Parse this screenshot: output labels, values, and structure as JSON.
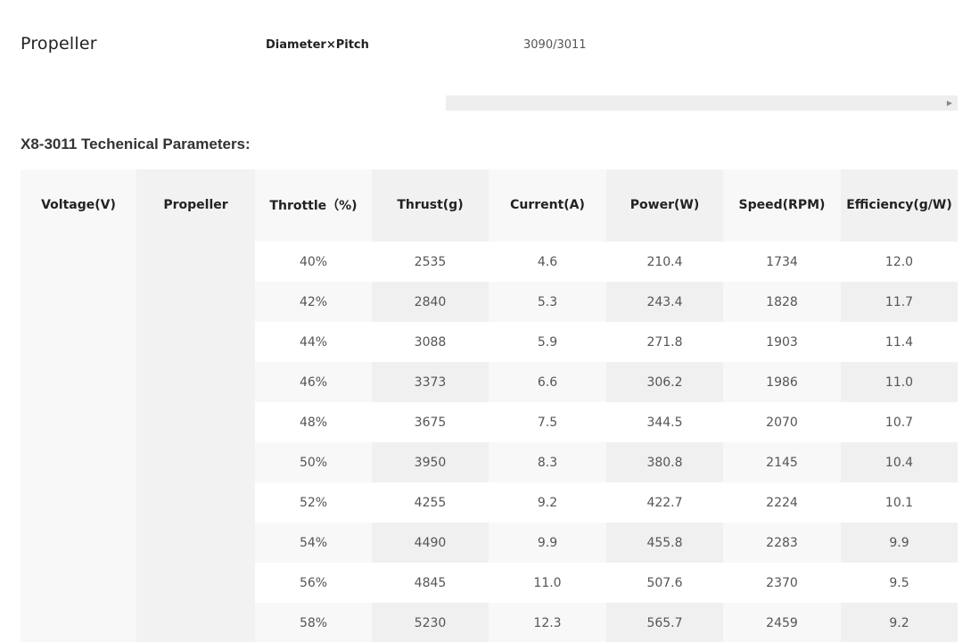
{
  "propeller": {
    "title": "Propeller",
    "label": "Diameter×Pitch",
    "value": "3090/3011"
  },
  "section_title": "X8-3011 Techenical Parameters:",
  "table": {
    "headers": [
      "Voltage(V)",
      "Propeller",
      "Throttle（%)",
      "Thrust(g)",
      "Current(A)",
      "Power(W)",
      "Speed(RPM)",
      "Efficiency(g/W)"
    ],
    "voltage": "",
    "propeller": "",
    "rows": [
      [
        "40%",
        "2535",
        "4.6",
        "210.4",
        "1734",
        "12.0"
      ],
      [
        "42%",
        "2840",
        "5.3",
        "243.4",
        "1828",
        "11.7"
      ],
      [
        "44%",
        "3088",
        "5.9",
        "271.8",
        "1903",
        "11.4"
      ],
      [
        "46%",
        "3373",
        "6.6",
        "306.2",
        "1986",
        "11.0"
      ],
      [
        "48%",
        "3675",
        "7.5",
        "344.5",
        "2070",
        "10.7"
      ],
      [
        "50%",
        "3950",
        "8.3",
        "380.8",
        "2145",
        "10.4"
      ],
      [
        "52%",
        "4255",
        "9.2",
        "422.7",
        "2224",
        "10.1"
      ],
      [
        "54%",
        "4490",
        "9.9",
        "455.8",
        "2283",
        "9.9"
      ],
      [
        "56%",
        "4845",
        "11.0",
        "507.6",
        "2370",
        "9.5"
      ],
      [
        "58%",
        "5230",
        "12.3",
        "565.7",
        "2459",
        "9.2"
      ]
    ]
  },
  "icons": {
    "scroll_right": "triangle-right-icon"
  }
}
